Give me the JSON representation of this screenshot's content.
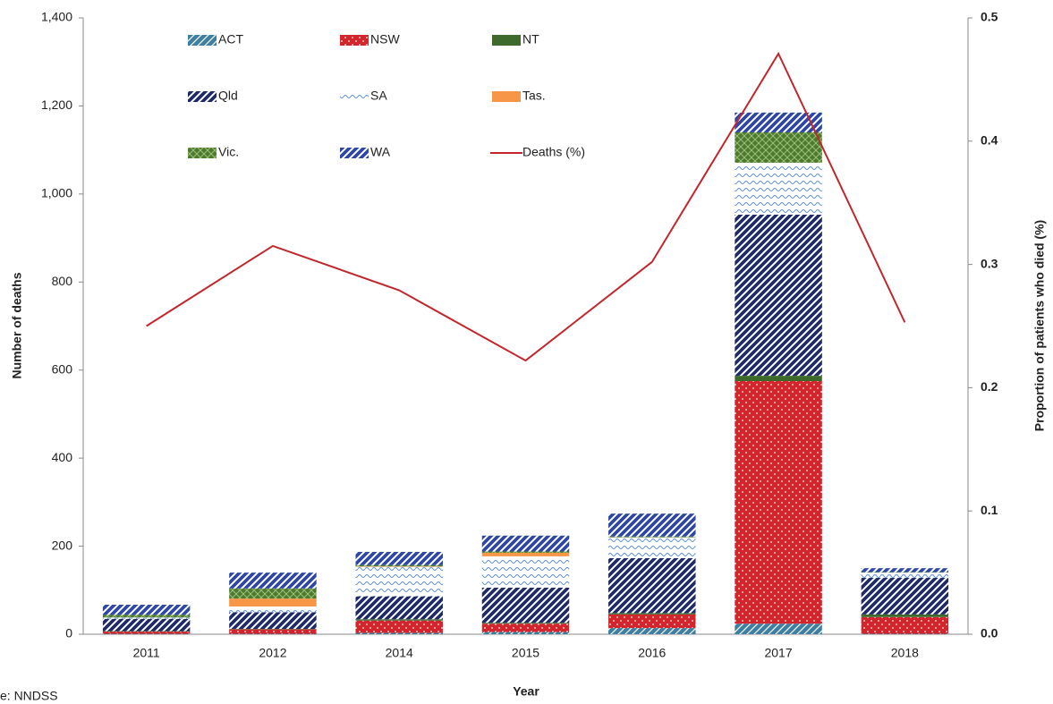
{
  "chart_data": {
    "type": "bar",
    "stacked": true,
    "x_label": "Year",
    "y_label": "Number of deaths",
    "y2_label": "Proportion of patients who died (%)",
    "source": "e: NNDSS",
    "categories": [
      "2011",
      "2012",
      "2014",
      "2015",
      "2016",
      "2017",
      "2018"
    ],
    "ylim": [
      0,
      1400
    ],
    "yticks": [
      0,
      200,
      400,
      600,
      800,
      {
        "value": 1000,
        "label": "1,000"
      },
      {
        "value": 1200,
        "label": "1,200"
      },
      {
        "value": 1400,
        "label": "1,400"
      }
    ],
    "y2lim": [
      0,
      0.5
    ],
    "y2ticks": [
      {
        "value": 0,
        "label": "0.0"
      },
      0.1,
      0.2,
      0.3,
      0.4,
      0.5
    ],
    "grid": false,
    "series": [
      {
        "name": "ACT",
        "color": "#3c7fa3",
        "values": [
          1,
          1,
          3,
          5,
          14,
          24,
          1
        ]
      },
      {
        "name": "NSW",
        "color": "#d5242b",
        "values": [
          5,
          10,
          28,
          19,
          31,
          551,
          38
        ]
      },
      {
        "name": "NT",
        "color": "#3e6b2c",
        "values": [
          1,
          1,
          3,
          2,
          3,
          12,
          6
        ]
      },
      {
        "name": "Qld",
        "color": "#1f2a66",
        "values": [
          28,
          38,
          52,
          80,
          125,
          366,
          83
        ]
      },
      {
        "name": "SA",
        "color": "#5b8fd0",
        "values": [
          3,
          13,
          67,
          71,
          47,
          118,
          12
        ]
      },
      {
        "name": "Tas.",
        "color": "#f79646",
        "values": [
          0,
          18,
          1,
          8,
          0,
          0,
          0
        ]
      },
      {
        "name": "Vic.",
        "color": "#4d7a2e",
        "values": [
          6,
          23,
          3,
          3,
          2,
          69,
          1
        ]
      },
      {
        "name": "WA",
        "color": "#2e47a6",
        "values": [
          23,
          36,
          30,
          36,
          52,
          45,
          9
        ]
      },
      {
        "name": "Deaths (%)",
        "type": "line",
        "axis": "y2",
        "color": "#c0272d",
        "values": [
          0.25,
          0.315,
          0.279,
          0.222,
          0.302,
          0.471,
          0.253
        ]
      }
    ]
  }
}
